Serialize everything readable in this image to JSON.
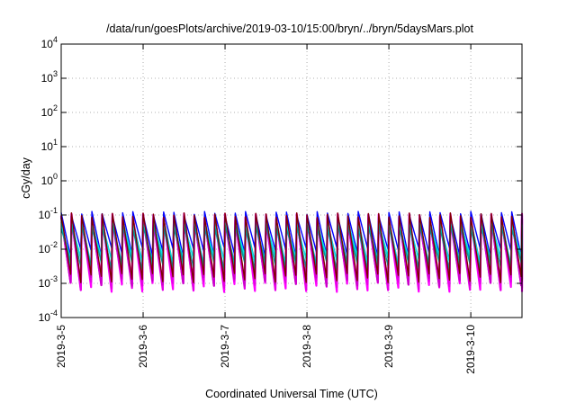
{
  "chart_data": {
    "type": "line",
    "title": "/data/run/goesPlots/archive/2019-03-10/15:00/bryn/../bryn/5daysMars.plot",
    "xlabel": "Coordinated Universal Time (UTC)",
    "ylabel": "cGy/day",
    "x_ticks": [
      "2019-3-5",
      "2019-3-6",
      "2019-3-7",
      "2019-3-8",
      "2019-3-9",
      "2019-3-10"
    ],
    "y_ticks": [
      {
        "base": "10",
        "exp": "-4"
      },
      {
        "base": "10",
        "exp": "-3"
      },
      {
        "base": "10",
        "exp": "-2"
      },
      {
        "base": "10",
        "exp": "-1"
      },
      {
        "base": "10",
        "exp": "0"
      },
      {
        "base": "10",
        "exp": "1"
      },
      {
        "base": "10",
        "exp": "2"
      },
      {
        "base": "10",
        "exp": "3"
      },
      {
        "base": "10",
        "exp": "4"
      }
    ],
    "xlim": [
      "2019-03-05T00:00",
      "2019-03-10T15:00"
    ],
    "ylim": [
      0.0001,
      10000
    ],
    "y_scale": "log",
    "grid": true,
    "grid_style": "dotted",
    "cycle_hours": 3,
    "series_colors": [
      "#ff00ff",
      "#e600e6",
      "#cc00cc",
      "#0000ff",
      "#00b3b3",
      "#00e5e5",
      "#009999",
      "#800000"
    ],
    "series_envelope": [
      {
        "peak": 0.095,
        "trough": 0.0008
      },
      {
        "peak": 0.085,
        "trough": 0.0009
      },
      {
        "peak": 0.075,
        "trough": 0.0012
      },
      {
        "peak": 0.11,
        "trough": 0.0085
      },
      {
        "peak": 0.065,
        "trough": 0.004
      },
      {
        "peak": 0.055,
        "trough": 0.005
      },
      {
        "peak": 0.045,
        "trough": 0.0035
      },
      {
        "peak": 0.1,
        "trough": 0.0015
      }
    ]
  }
}
